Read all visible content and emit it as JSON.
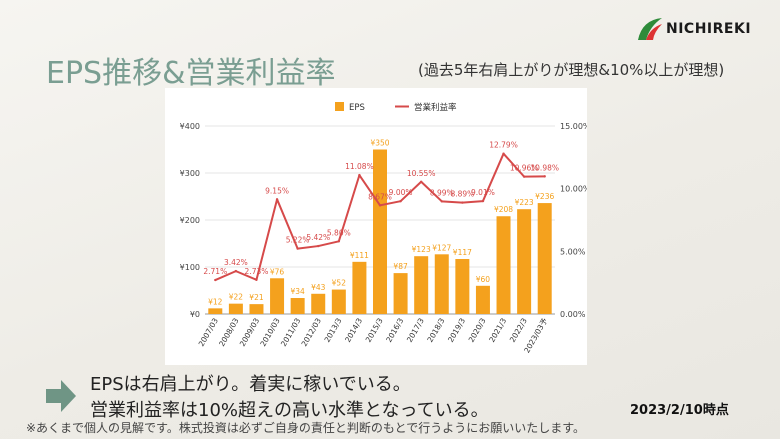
{
  "header": {
    "title": "EPS推移&営業利益率",
    "subtitle": "(過去5年右肩上がりが理想&10%以上が理想)",
    "logo_text": "NICHIREKI"
  },
  "footer": {
    "line1": "EPSは右肩上がり。着実に稼いでいる。",
    "line2": "営業利益率は10%超えの高い水準となっている。",
    "date": "2023/2/10時点",
    "note": "※あくまで個人の見解です。株式投資は必ずご自身の責任と判断のもとで行うようにお願いいたします。"
  },
  "colors": {
    "bar": "#f4a11d",
    "line": "#d64a4a",
    "title": "#7a9e92",
    "arrow": "#6f9585"
  },
  "chart_data": {
    "type": "bar",
    "categories": [
      "2007/03",
      "2008/03",
      "2009/03",
      "2010/03",
      "2011/03",
      "2012/03",
      "2013/3",
      "2014/3",
      "2015/3",
      "2016/3",
      "2017/3",
      "2018/3",
      "2019/3",
      "2020/3",
      "2021/3",
      "2022/3",
      "2023/03予"
    ],
    "series": [
      {
        "name": "EPS",
        "axis": "left",
        "values": [
          12,
          22,
          21,
          76,
          34,
          43,
          52,
          111,
          350,
          87,
          123,
          127,
          117,
          60,
          208,
          223,
          236
        ],
        "labels": [
          "¥12",
          "¥22",
          "¥21",
          "¥76",
          "¥34",
          "¥43",
          "¥52",
          "¥111",
          "¥350",
          "¥87",
          "¥123",
          "¥127",
          "¥117",
          "¥60",
          "¥208",
          "¥223",
          "¥236"
        ]
      },
      {
        "name": "営業利益率",
        "axis": "right",
        "values": [
          2.71,
          3.42,
          2.73,
          9.15,
          5.22,
          5.42,
          5.8,
          11.08,
          8.67,
          9.0,
          10.55,
          8.99,
          8.89,
          9.01,
          12.79,
          10.96,
          10.98
        ],
        "labels": [
          "2.71%",
          "3.42%",
          "2.73%",
          "9.15%",
          "5.22%",
          "5.42%",
          "5.80%",
          "11.08%",
          "8.67%",
          "9.00%",
          "10.55%",
          "8.99%",
          "8.89%",
          "9.01%",
          "12.79%",
          "10.96%",
          "10.98%"
        ]
      }
    ],
    "ylim": [
      0,
      400
    ],
    "y2lim": [
      0,
      15
    ],
    "yticks": [
      "¥0",
      "¥100",
      "¥200",
      "¥300",
      "¥400"
    ],
    "y2ticks": [
      "0.00%",
      "5.00%",
      "10.00%",
      "15.00%"
    ],
    "legend": "top-center",
    "grid": true
  }
}
